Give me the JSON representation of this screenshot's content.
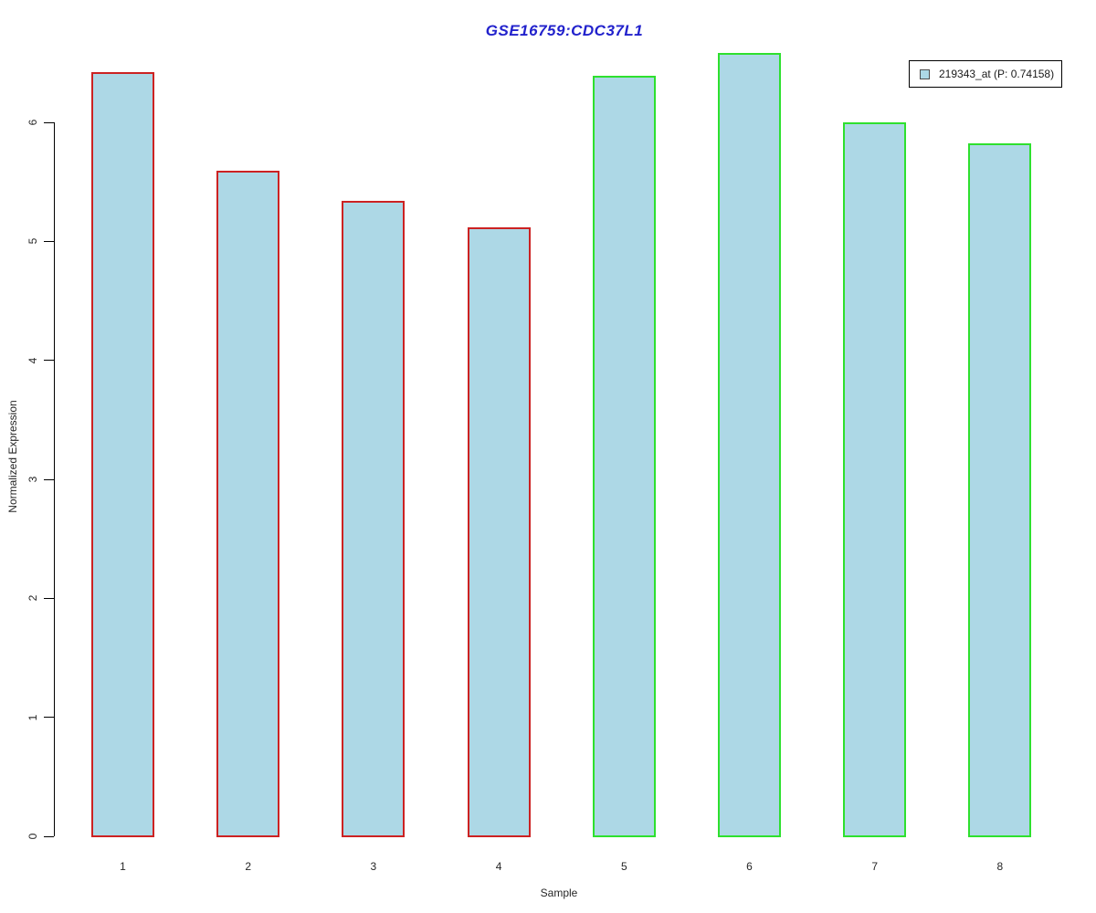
{
  "title": {
    "text": "GSE16759:CDC37L1",
    "color": "#2222cc"
  },
  "legend": {
    "label": "219343_at (P: 0.74158)",
    "swatch_fill": "#add8e6",
    "position": "top-right"
  },
  "axes": {
    "y_label": "Normalized Expression",
    "x_label": "Sample"
  },
  "chart_data": {
    "type": "bar",
    "title": "GSE16759:CDC37L1",
    "categories": [
      "1",
      "2",
      "3",
      "4",
      "5",
      "6",
      "7",
      "8"
    ],
    "series": [
      {
        "name": "219343_at (P: 0.74158)",
        "values": [
          6.42,
          5.59,
          5.34,
          5.12,
          6.39,
          6.58,
          6.0,
          5.82
        ]
      }
    ],
    "xlabel": "Sample",
    "ylabel": "Normalized Expression",
    "ylim": [
      0,
      6.6
    ],
    "yticks": [
      0,
      1,
      2,
      3,
      4,
      5,
      6
    ],
    "grid": false,
    "legend_position": "top-right",
    "bar_fill": "#add8e6",
    "bar_border_colors": [
      "#cc2222",
      "#cc2222",
      "#cc2222",
      "#cc2222",
      "#2ee02e",
      "#2ee02e",
      "#2ee02e",
      "#2ee02e"
    ],
    "group_border_legend": {
      "red_border_samples": [
        "1",
        "2",
        "3",
        "4"
      ],
      "green_border_samples": [
        "5",
        "6",
        "7",
        "8"
      ]
    }
  }
}
